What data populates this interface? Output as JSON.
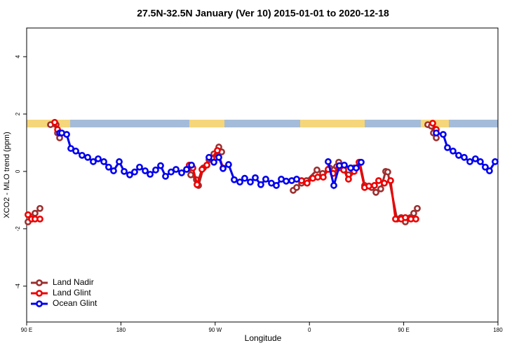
{
  "chart_data": {
    "type": "line",
    "title": "27.5N-32.5N January (Ver 10)   2015-01-01 to 2020-12-18",
    "xlabel": "Longitude",
    "ylabel": "XCO2 - MLO trend (ppm)",
    "xlim": [
      90,
      540
    ],
    "ylim": [
      -5.25,
      5
    ],
    "xticks": [
      {
        "value": 90,
        "label": "90 E"
      },
      180,
      {
        "value": 270,
        "label": "90 W"
      },
      {
        "value": 360,
        "label": "0"
      },
      {
        "value": 450,
        "label": "90 E"
      },
      {
        "value": 540,
        "label": "180"
      }
    ],
    "yticks": [
      -4,
      -2,
      0,
      2,
      4
    ],
    "legend": "bottom-left",
    "series": [
      {
        "name": "Land Nadir",
        "color": "#9b3030",
        "x": [
          91.3,
          94.7,
          98.0,
          102.7,
          null,
          112.8,
          118.1,
          119.5,
          121.5,
          null,
          245.3,
          246.7,
          252.1,
          254.1,
          258.7,
          264.1,
          268.8,
          273.5,
          276.2,
          null,
          344.5,
          347.8,
          352.5,
          357.2,
          367.2,
          372.6,
          379.3,
          386.0,
          388.0,
          392.7,
          397.3,
          402.7,
          408.1,
          412.7,
          419.4,
          423.5,
          428.1,
          432.8,
          434.8,
          443.6,
          447.6,
          451.6,
          456.3,
          459.6,
          463.0,
          null,
          473.0,
          476.4,
          478.4,
          481.1
        ],
        "values": [
          -1.76,
          -1.59,
          -1.46,
          -1.29,
          null,
          1.63,
          1.63,
          1.34,
          1.17,
          null,
          0.17,
          -0.12,
          -0.29,
          -0.49,
          0.12,
          0.41,
          0.61,
          0.85,
          0.68,
          null,
          -0.66,
          -0.56,
          -0.41,
          -0.32,
          0.05,
          -0.07,
          0.12,
          0.17,
          0.32,
          0.12,
          -0.12,
          0.12,
          0.32,
          -0.49,
          -0.56,
          -0.73,
          -0.61,
          0,
          -0.02,
          -1.66,
          -1.61,
          -1.76,
          -1.61,
          -1.46,
          -1.29,
          null,
          1.63,
          1.58,
          1.34,
          1.17
        ]
      },
      {
        "name": "Land Glint",
        "color": "#ee0000",
        "x": [
          91.3,
          94.7,
          98.0,
          102.7,
          null,
          116.8,
          119.5,
          null,
          245.3,
          248.7,
          252.7,
          257.4,
          262.1,
          266.8,
          272.1,
          277.5,
          null,
          352.5,
          357.8,
          363.2,
          367.9,
          373.2,
          377.9,
          382.6,
          388.0,
          392.7,
          397.3,
          402.7,
          407.4,
          412.7,
          416.8,
          422.1,
          426.1,
          431.5,
          437.5,
          442.2,
          447.6,
          451.6,
          456.9,
          461.6,
          null,
          477.7,
          481.1
        ],
        "values": [
          -1.51,
          -1.66,
          -1.66,
          -1.66,
          null,
          1.71,
          1.46,
          null,
          0.22,
          0.12,
          -0.46,
          0.07,
          0.22,
          0.46,
          0.73,
          0.12,
          null,
          -0.32,
          -0.41,
          -0.24,
          -0.2,
          -0.2,
          0.07,
          -0.07,
          0.12,
          0.05,
          -0.27,
          0,
          0.32,
          -0.56,
          -0.51,
          -0.49,
          -0.32,
          -0.41,
          -0.32,
          -1.66,
          -1.66,
          -1.61,
          -1.66,
          -1.66,
          null,
          1.68,
          1.46
        ]
      },
      {
        "name": "Ocean Glint",
        "color": "#0000ee",
        "x": [
          121.5,
          123.5,
          128.2,
          132.2,
          136.9,
          142.9,
          148.3,
          153.6,
          158.3,
          163.7,
          168.3,
          173.0,
          178.4,
          183.1,
          188.4,
          193.1,
          197.8,
          203.2,
          207.9,
          213.2,
          217.9,
          222.6,
          227.9,
          232.6,
          238.0,
          242.7,
          247.4,
          null,
          264.1,
          268.8,
          273.5,
          277.5,
          282.8,
          288.2,
          293.6,
          298.2,
          303.6,
          308.3,
          313.6,
          318.3,
          323.7,
          328.4,
          333.1,
          337.8,
          343.1,
          347.8,
          null,
          377.9,
          383.3,
          388.6,
          393.3,
          399.4,
          404.7,
          409.4,
          null,
          481.1,
          487.7,
          491.8,
          497.1,
          502.5,
          507.8,
          513.2,
          518.5,
          523.2,
          527.9,
          531.9,
          537.3
        ],
        "values": [
          1.34,
          1.34,
          1.29,
          0.8,
          0.71,
          0.56,
          0.49,
          0.34,
          0.44,
          0.34,
          0.15,
          0.02,
          0.34,
          0,
          -0.12,
          -0.02,
          0.15,
          0.02,
          -0.1,
          0.05,
          0.2,
          -0.17,
          -0.02,
          0.07,
          -0.05,
          0.07,
          0.22,
          null,
          0.49,
          0.32,
          0.49,
          0.1,
          0.24,
          -0.29,
          -0.37,
          -0.24,
          -0.37,
          -0.22,
          -0.46,
          -0.27,
          -0.41,
          -0.49,
          -0.27,
          -0.34,
          -0.32,
          -0.27,
          null,
          0.34,
          -0.49,
          0.2,
          0.22,
          0.12,
          0.12,
          0.32,
          null,
          1.34,
          1.29,
          0.83,
          0.71,
          0.56,
          0.49,
          0.34,
          0.44,
          0.34,
          0.15,
          0.02,
          0.34
        ]
      }
    ]
  }
}
